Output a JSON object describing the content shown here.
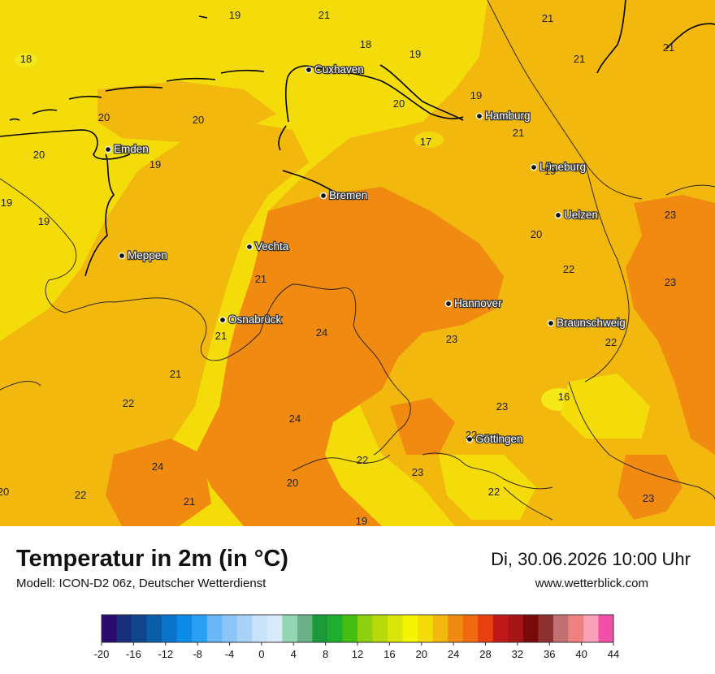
{
  "header": {
    "title": "Temperatur in 2m (in °C)",
    "subtitle": "Modell: ICON-D2 06z, Deutscher Wetterdienst",
    "datetime": "Di, 30.06.2026 10:00 Uhr",
    "website": "www.wetterblick.com"
  },
  "colors": {
    "t17_18": "#f2d80c",
    "t19_20": "#f3dc0a",
    "t21_22": "#f3b80e",
    "t23_24": "#f08a10",
    "t16": "#f4e818",
    "coastline": "#000000",
    "border": "#111111"
  },
  "cities": [
    {
      "name": "Cuxhaven"
    },
    {
      "name": "Hamburg"
    },
    {
      "name": "Emden"
    },
    {
      "name": "Lüneburg"
    },
    {
      "name": "Bremen"
    },
    {
      "name": "Uelzen"
    },
    {
      "name": "Vechta"
    },
    {
      "name": "Meppen"
    },
    {
      "name": "Hannover"
    },
    {
      "name": "Osnabrück"
    },
    {
      "name": "Braunschweig"
    },
    {
      "name": "Göttingen"
    }
  ],
  "values": [
    {
      "v": "19"
    },
    {
      "v": "21"
    },
    {
      "v": "21"
    },
    {
      "v": "18"
    },
    {
      "v": "18"
    },
    {
      "v": "19"
    },
    {
      "v": "21"
    },
    {
      "v": "21"
    },
    {
      "v": "19"
    },
    {
      "v": "20"
    },
    {
      "v": "20"
    },
    {
      "v": "20"
    },
    {
      "v": "21"
    },
    {
      "v": "17"
    },
    {
      "v": "20"
    },
    {
      "v": "19"
    },
    {
      "v": "19"
    },
    {
      "v": "19"
    },
    {
      "v": "19"
    },
    {
      "v": "23"
    },
    {
      "v": "20"
    },
    {
      "v": "22"
    },
    {
      "v": "23"
    },
    {
      "v": "21"
    },
    {
      "v": "24"
    },
    {
      "v": "23"
    },
    {
      "v": "21"
    },
    {
      "v": "22"
    },
    {
      "v": "21"
    },
    {
      "v": "16"
    },
    {
      "v": "22"
    },
    {
      "v": "23"
    },
    {
      "v": "24"
    },
    {
      "v": "22"
    },
    {
      "v": "24"
    },
    {
      "v": "22"
    },
    {
      "v": "23"
    },
    {
      "v": "20"
    },
    {
      "v": "20"
    },
    {
      "v": "22"
    },
    {
      "v": "22"
    },
    {
      "v": "21"
    },
    {
      "v": "23"
    },
    {
      "v": "19"
    }
  ],
  "legend": {
    "min": -20,
    "max": 44,
    "ticks": [
      "-20",
      "-16",
      "-12",
      "-8",
      "-4",
      "0",
      "4",
      "8",
      "12",
      "16",
      "20",
      "24",
      "28",
      "32",
      "36",
      "40",
      "44"
    ],
    "colors": [
      "#2b0a6e",
      "#1a2f7a",
      "#10468e",
      "#0b5ea8",
      "#0a74c8",
      "#0a8ce8",
      "#2aa0f5",
      "#6ab6f7",
      "#8cc6f8",
      "#a8d2f8",
      "#c8e2fb",
      "#d8ebfb",
      "#94d6b4",
      "#6cb08a",
      "#1a9a3a",
      "#1cae2c",
      "#44bf10",
      "#8cd010",
      "#b8da0a",
      "#d8e60a",
      "#f4f600",
      "#f3dc0a",
      "#f3b80e",
      "#f08a10",
      "#f06a10",
      "#e8400e",
      "#c01818",
      "#a81518",
      "#7a0a0a",
      "#8c3030",
      "#c07070",
      "#f08080",
      "#f8a0b8",
      "#f050a8"
    ]
  }
}
